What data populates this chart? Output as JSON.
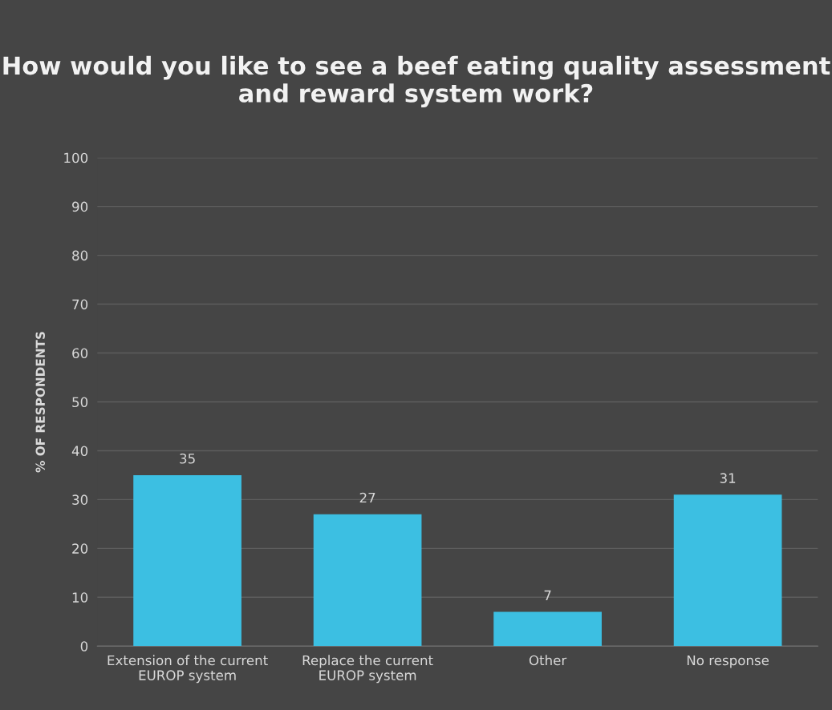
{
  "chart_data": {
    "type": "bar",
    "title": "How would you like to see a beef eating quality assessment and reward system work?",
    "ylabel": "% OF RESPONDENTS",
    "categories": [
      "Extension of the current\nEUROP system",
      "Replace the current\nEUROP system",
      "Other",
      "No response"
    ],
    "values": [
      35,
      27,
      7,
      31
    ],
    "color": "#3cbfe2",
    "ylim": [
      0,
      100
    ],
    "yticks": [
      0,
      10,
      20,
      30,
      40,
      50,
      60,
      70,
      80,
      90,
      100
    ],
    "grid": "y",
    "data_labels": true
  }
}
